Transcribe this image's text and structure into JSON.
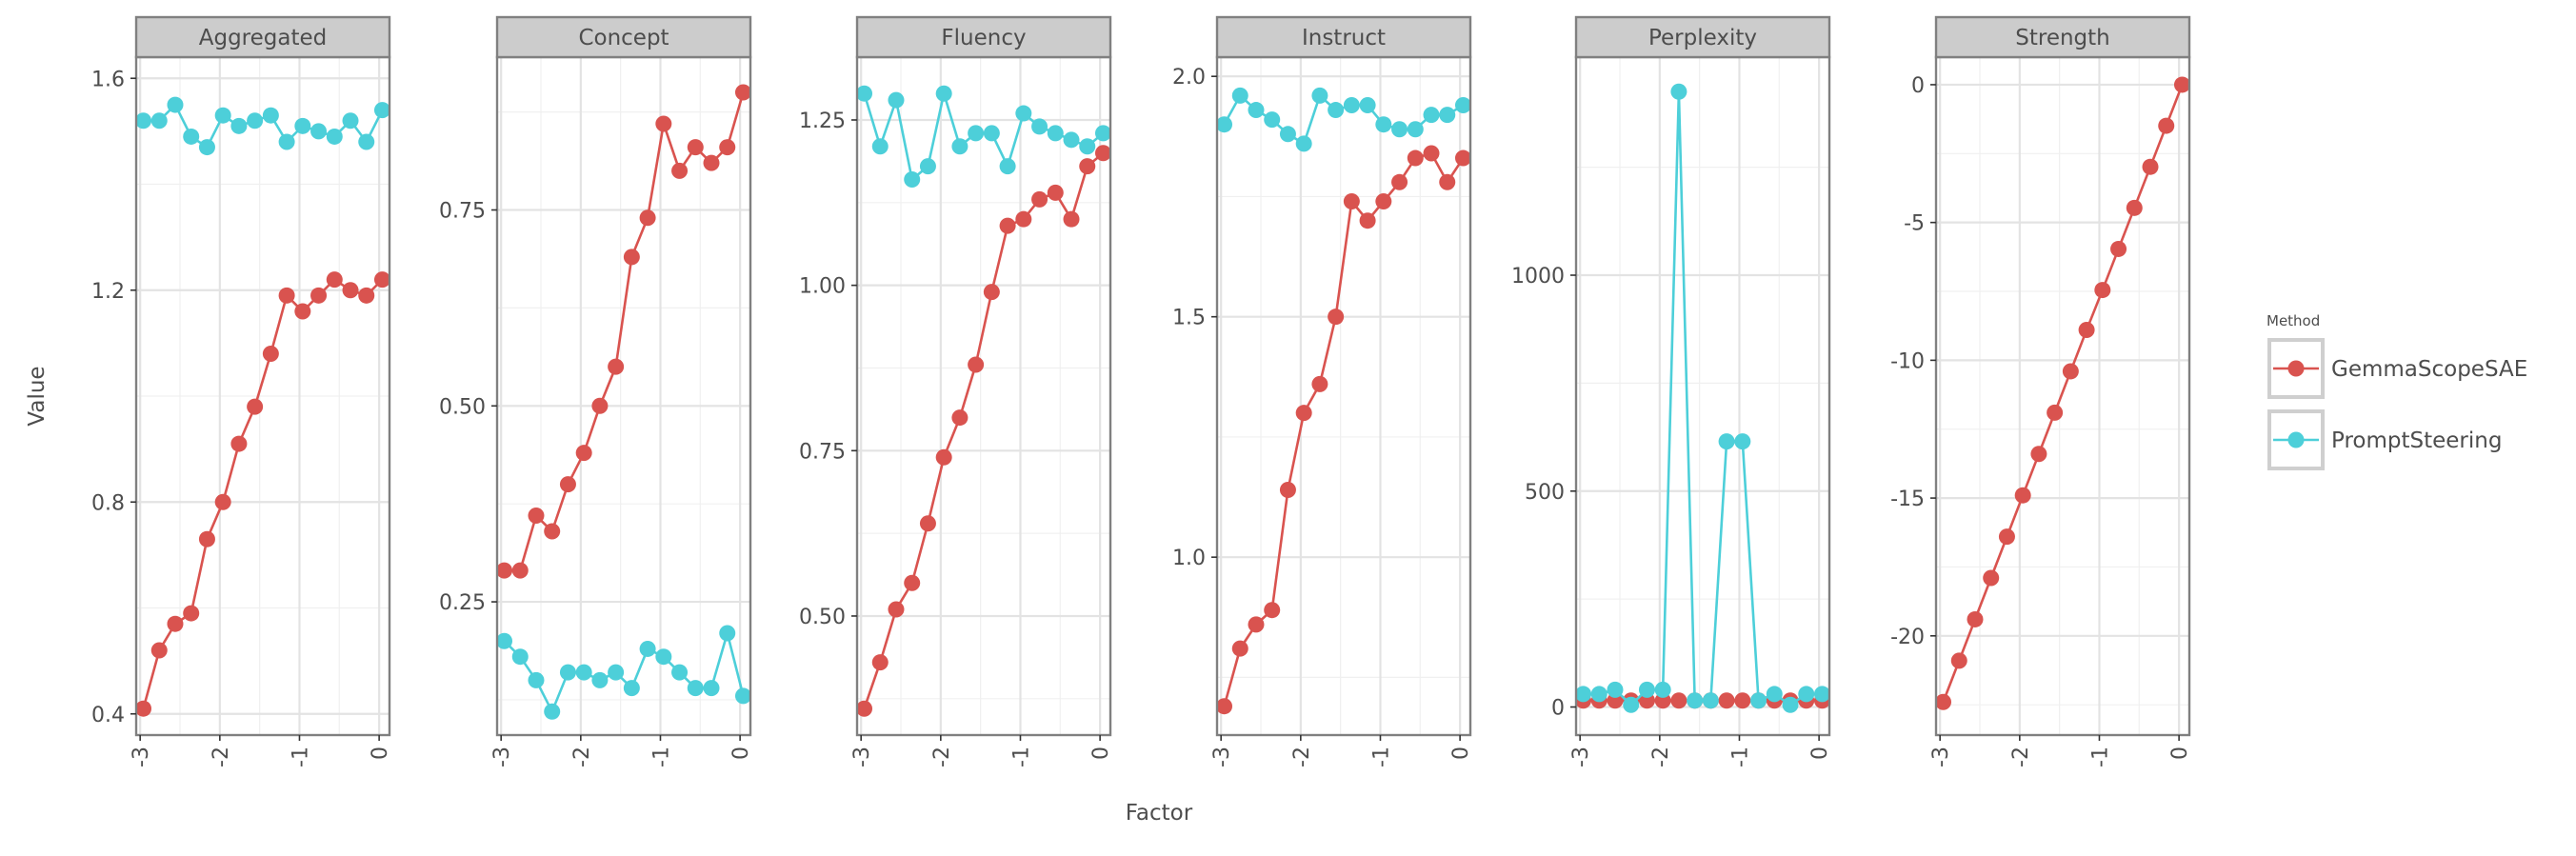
{
  "chart_data": {
    "type": "line",
    "xlabel": "Factor",
    "ylabel": "Value",
    "legend": {
      "title": "Method",
      "position": "right",
      "entries": [
        "GemmaScopeSAE",
        "PromptSteering"
      ]
    },
    "colors": {
      "GemmaScopeSAE": "#d9534f",
      "PromptSteering": "#4dcfd9"
    },
    "x": [
      -2.96,
      -2.76,
      -2.56,
      -2.36,
      -2.16,
      -1.96,
      -1.76,
      -1.56,
      -1.36,
      -1.16,
      -0.96,
      -0.76,
      -0.56,
      -0.36,
      -0.16,
      0.04
    ],
    "panels": [
      {
        "title": "Aggregated",
        "ylim": [
          0.36,
          1.64
        ],
        "yticks": [
          0.4,
          0.8,
          1.2,
          1.6
        ],
        "ytick_labels": [
          "0.4",
          "0.8",
          "1.2",
          "1.6"
        ],
        "series": [
          {
            "name": "GemmaScopeSAE",
            "values": [
              0.41,
              0.52,
              0.57,
              0.59,
              0.73,
              0.8,
              0.91,
              0.98,
              1.08,
              1.19,
              1.16,
              1.19,
              1.22,
              1.2,
              1.19,
              1.22
            ]
          },
          {
            "name": "PromptSteering",
            "values": [
              1.52,
              1.52,
              1.55,
              1.49,
              1.47,
              1.53,
              1.51,
              1.52,
              1.53,
              1.48,
              1.51,
              1.5,
              1.49,
              1.52,
              1.48,
              1.54
            ]
          }
        ]
      },
      {
        "title": "Concept",
        "ylim": [
          0.08,
          0.945
        ],
        "yticks": [
          0.25,
          0.5,
          0.75
        ],
        "ytick_labels": [
          "0.25",
          "0.50",
          "0.75"
        ],
        "series": [
          {
            "name": "GemmaScopeSAE",
            "values": [
              0.29,
              0.29,
              0.36,
              0.34,
              0.4,
              0.44,
              0.5,
              0.55,
              0.69,
              0.74,
              0.86,
              0.8,
              0.83,
              0.81,
              0.83,
              0.9
            ]
          },
          {
            "name": "PromptSteering",
            "values": [
              0.2,
              0.18,
              0.15,
              0.11,
              0.16,
              0.16,
              0.15,
              0.16,
              0.14,
              0.19,
              0.18,
              0.16,
              0.14,
              0.14,
              0.21,
              0.13
            ]
          }
        ]
      },
      {
        "title": "Fluency",
        "ylim": [
          0.32,
          1.345
        ],
        "yticks": [
          0.5,
          0.75,
          1.0,
          1.25
        ],
        "ytick_labels": [
          "0.50",
          "0.75",
          "1.00",
          "1.25"
        ],
        "series": [
          {
            "name": "GemmaScopeSAE",
            "values": [
              0.36,
              0.43,
              0.51,
              0.55,
              0.64,
              0.74,
              0.8,
              0.88,
              0.99,
              1.09,
              1.1,
              1.13,
              1.14,
              1.1,
              1.18,
              1.2
            ]
          },
          {
            "name": "PromptSteering",
            "values": [
              1.29,
              1.21,
              1.28,
              1.16,
              1.18,
              1.29,
              1.21,
              1.23,
              1.23,
              1.18,
              1.26,
              1.24,
              1.23,
              1.22,
              1.21,
              1.23
            ]
          }
        ]
      },
      {
        "title": "Instruct",
        "ylim": [
          0.63,
          2.04
        ],
        "yticks": [
          1.0,
          1.5,
          2.0
        ],
        "ytick_labels": [
          "1.0",
          "1.5",
          "2.0"
        ],
        "series": [
          {
            "name": "GemmaScopeSAE",
            "values": [
              0.69,
              0.81,
              0.86,
              0.89,
              1.14,
              1.3,
              1.36,
              1.5,
              1.74,
              1.7,
              1.74,
              1.78,
              1.83,
              1.84,
              1.78,
              1.83
            ]
          },
          {
            "name": "PromptSteering",
            "values": [
              1.9,
              1.96,
              1.93,
              1.91,
              1.88,
              1.86,
              1.96,
              1.93,
              1.94,
              1.94,
              1.9,
              1.89,
              1.89,
              1.92,
              1.92,
              1.94
            ]
          }
        ]
      },
      {
        "title": "Perplexity",
        "ylim": [
          -65,
          1505
        ],
        "yticks": [
          0,
          500,
          1000
        ],
        "ytick_labels": [
          "0",
          "500",
          "1000"
        ],
        "series": [
          {
            "name": "GemmaScopeSAE",
            "values": [
              15,
              15,
              15,
              15,
              15,
              15,
              15,
              15,
              15,
              15,
              15,
              15,
              15,
              15,
              15,
              15
            ]
          },
          {
            "name": "PromptSteering",
            "values": [
              30,
              30,
              40,
              5,
              40,
              40,
              1425,
              15,
              15,
              615,
              615,
              15,
              30,
              5,
              30,
              30
            ]
          }
        ]
      },
      {
        "title": "Strength",
        "ylim": [
          -23.6,
          1.0
        ],
        "yticks": [
          -20,
          -15,
          -10,
          -5,
          0
        ],
        "ytick_labels": [
          "-20",
          "-15",
          "-10",
          "-5",
          "0"
        ],
        "series": [
          {
            "name": "GemmaScopeSAE",
            "values": [
              -22.4,
              -20.9,
              -19.4,
              -17.9,
              -16.4,
              -14.9,
              -13.4,
              -11.9,
              -10.4,
              -8.9,
              -7.45,
              -5.96,
              -4.47,
              -2.98,
              -1.49,
              0.0
            ]
          }
        ]
      }
    ],
    "xticks": [
      -3,
      -2,
      -1,
      0
    ],
    "xtick_labels": [
      "-3",
      "-2",
      "-1",
      "0"
    ],
    "xlim": [
      -3.05,
      0.13
    ],
    "grid": true
  }
}
